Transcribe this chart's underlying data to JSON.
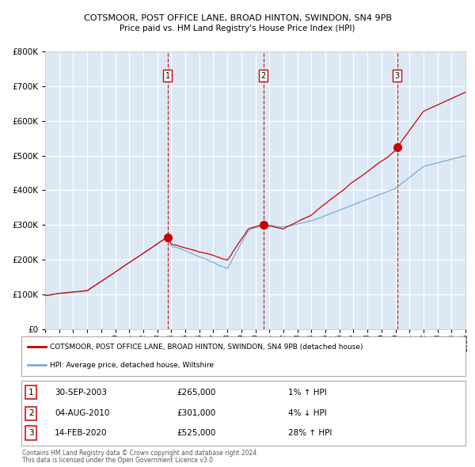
{
  "title1": "COTSMOOR, POST OFFICE LANE, BROAD HINTON, SWINDON, SN4 9PB",
  "title2": "Price paid vs. HM Land Registry's House Price Index (HPI)",
  "red_label": "COTSMOOR, POST OFFICE LANE, BROAD HINTON, SWINDON, SN4 9PB (detached house)",
  "blue_label": "HPI: Average price, detached house, Wiltshire",
  "transactions": [
    {
      "num": 1,
      "date": "30-SEP-2003",
      "price": 265000,
      "hpi_pct": "1%",
      "hpi_dir": "↑"
    },
    {
      "num": 2,
      "date": "04-AUG-2010",
      "price": 301000,
      "hpi_pct": "4%",
      "hpi_dir": "↓"
    },
    {
      "num": 3,
      "date": "14-FEB-2020",
      "price": 525000,
      "hpi_pct": "28%",
      "hpi_dir": "↑"
    }
  ],
  "transaction_years": [
    2003.75,
    2010.58,
    2020.12
  ],
  "transaction_prices": [
    265000,
    301000,
    525000
  ],
  "ylim": [
    0,
    800000
  ],
  "xlim_start": 1995,
  "xlim_end": 2025,
  "plot_bg": "#dce9f5",
  "red_color": "#cc0000",
  "blue_color": "#7aadd4",
  "grid_color": "#ffffff",
  "footnote1": "Contains HM Land Registry data © Crown copyright and database right 2024.",
  "footnote2": "This data is licensed under the Open Government Licence v3.0."
}
